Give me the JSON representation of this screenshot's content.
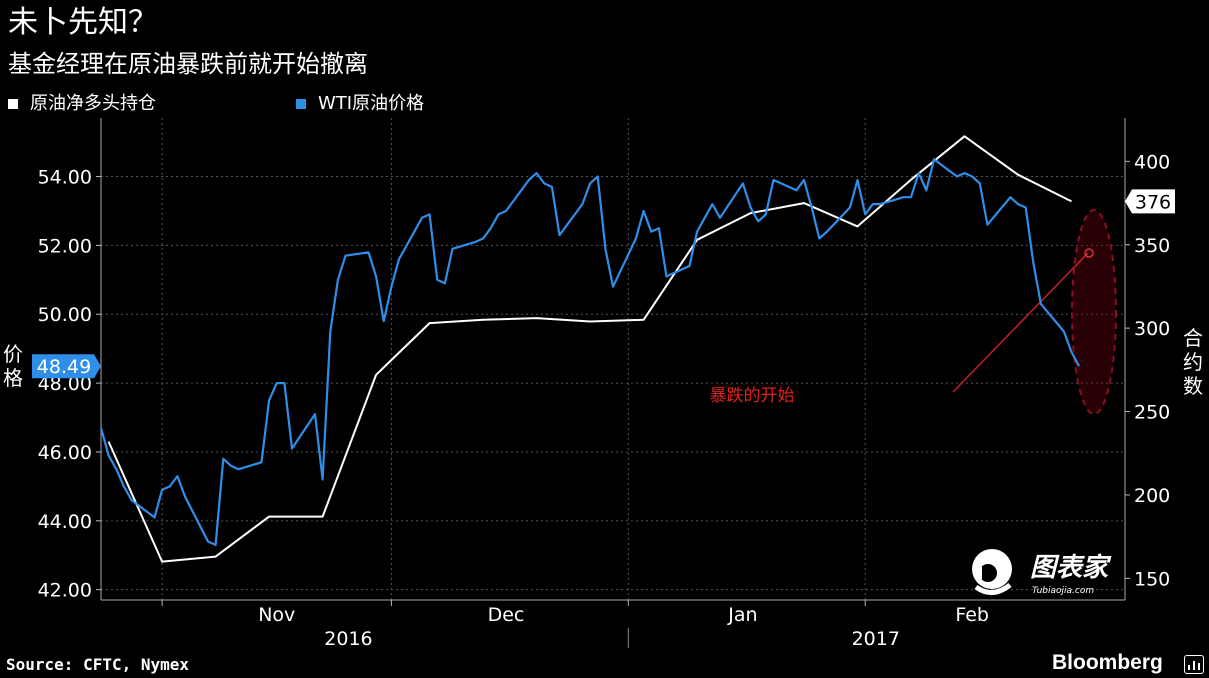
{
  "header": {
    "title": "未卜先知？",
    "subtitle": "基金经理在原油暴跌前就开始撤离"
  },
  "legend": [
    {
      "label": "原油净多头持仓",
      "color": "#ffffff"
    },
    {
      "label": "WTI原油价格",
      "color": "#2f8fe8"
    }
  ],
  "axes": {
    "left_label": "价格",
    "right_label": "合约数"
  },
  "footer": {
    "source": "Source: CFTC, Nymex",
    "brand": "Bloomberg"
  },
  "watermark": {
    "text": "图表家",
    "sub": "Tubiaojia.com"
  },
  "chart_data": {
    "type": "line",
    "x_months": [
      {
        "label": "Nov",
        "date": "2016-11-01"
      },
      {
        "label": "Dec",
        "date": "2016-12-01"
      },
      {
        "label": "Jan",
        "date": "2017-01-01"
      },
      {
        "label": "Feb",
        "date": "2017-02-01"
      }
    ],
    "x_years": [
      {
        "label": "2016",
        "date": "2016-11-01"
      },
      {
        "label": "2017",
        "date": "2017-02-01"
      }
    ],
    "x_range": [
      "2016-10-24",
      "2017-03-07"
    ],
    "y_left": {
      "range": [
        41.7,
        55.7
      ],
      "ticks": [
        42,
        44,
        46,
        48,
        50,
        52,
        54
      ]
    },
    "y_right": {
      "range": [
        137,
        426
      ],
      "ticks": [
        150,
        200,
        250,
        300,
        350,
        400
      ]
    },
    "grid": true,
    "current_value_left": "48.49",
    "current_value_right": "376",
    "annotation": "暴跌的开始",
    "series": [
      {
        "name": "原油净多头持仓",
        "axis": "right",
        "color": "#ffffff",
        "points": [
          [
            "2016-10-25",
            232
          ],
          [
            "2016-11-01",
            160
          ],
          [
            "2016-11-08",
            163
          ],
          [
            "2016-11-15",
            187
          ],
          [
            "2016-11-22",
            187
          ],
          [
            "2016-11-29",
            272
          ],
          [
            "2016-12-06",
            303
          ],
          [
            "2016-12-13",
            305
          ],
          [
            "2016-12-20",
            306
          ],
          [
            "2016-12-27",
            304
          ],
          [
            "2017-01-03",
            305
          ],
          [
            "2017-01-10",
            353
          ],
          [
            "2017-01-17",
            369
          ],
          [
            "2017-01-24",
            375
          ],
          [
            "2017-01-31",
            361
          ],
          [
            "2017-02-07",
            389
          ],
          [
            "2017-02-14",
            415
          ],
          [
            "2017-02-21",
            392
          ],
          [
            "2017-02-28",
            376
          ]
        ]
      },
      {
        "name": "WTI原油价格",
        "axis": "left",
        "color": "#2f8fe8",
        "points": [
          [
            "2016-10-24",
            46.7
          ],
          [
            "2016-10-25",
            45.9
          ],
          [
            "2016-10-26",
            45.5
          ],
          [
            "2016-10-27",
            45.0
          ],
          [
            "2016-10-28",
            44.6
          ],
          [
            "2016-10-31",
            44.1
          ],
          [
            "2016-11-01",
            44.9
          ],
          [
            "2016-11-02",
            45.0
          ],
          [
            "2016-11-03",
            45.3
          ],
          [
            "2016-11-04",
            44.7
          ],
          [
            "2016-11-07",
            43.4
          ],
          [
            "2016-11-08",
            43.3
          ],
          [
            "2016-11-09",
            45.8
          ],
          [
            "2016-11-10",
            45.6
          ],
          [
            "2016-11-11",
            45.5
          ],
          [
            "2016-11-14",
            45.7
          ],
          [
            "2016-11-15",
            47.5
          ],
          [
            "2016-11-16",
            48.0
          ],
          [
            "2016-11-17",
            48.0
          ],
          [
            "2016-11-18",
            46.1
          ],
          [
            "2016-11-21",
            47.1
          ],
          [
            "2016-11-22",
            45.2
          ],
          [
            "2016-11-23",
            49.5
          ],
          [
            "2016-11-24",
            51.0
          ],
          [
            "2016-11-25",
            51.7
          ],
          [
            "2016-11-28",
            51.8
          ],
          [
            "2016-11-29",
            51.1
          ],
          [
            "2016-11-30",
            49.8
          ],
          [
            "2016-12-01",
            50.8
          ],
          [
            "2016-12-02",
            51.6
          ],
          [
            "2016-12-05",
            52.8
          ],
          [
            "2016-12-06",
            52.9
          ],
          [
            "2016-12-07",
            51.0
          ],
          [
            "2016-12-08",
            50.9
          ],
          [
            "2016-12-09",
            51.9
          ],
          [
            "2016-12-12",
            52.1
          ],
          [
            "2016-12-13",
            52.2
          ],
          [
            "2016-12-14",
            52.5
          ],
          [
            "2016-12-15",
            52.9
          ],
          [
            "2016-12-16",
            53.0
          ],
          [
            "2016-12-19",
            53.9
          ],
          [
            "2016-12-20",
            54.1
          ],
          [
            "2016-12-21",
            53.8
          ],
          [
            "2016-12-22",
            53.7
          ],
          [
            "2016-12-23",
            52.3
          ],
          [
            "2016-12-26",
            53.2
          ],
          [
            "2016-12-27",
            53.8
          ],
          [
            "2016-12-28",
            54.0
          ],
          [
            "2016-12-29",
            51.9
          ],
          [
            "2016-12-30",
            50.8
          ],
          [
            "2017-01-02",
            52.2
          ],
          [
            "2017-01-03",
            53.0
          ],
          [
            "2017-01-04",
            52.4
          ],
          [
            "2017-01-05",
            52.5
          ],
          [
            "2017-01-06",
            51.1
          ],
          [
            "2017-01-09",
            51.4
          ],
          [
            "2017-01-10",
            52.4
          ],
          [
            "2017-01-11",
            52.8
          ],
          [
            "2017-01-12",
            53.2
          ],
          [
            "2017-01-13",
            52.8
          ],
          [
            "2017-01-16",
            53.8
          ],
          [
            "2017-01-17",
            53.1
          ],
          [
            "2017-01-18",
            52.7
          ],
          [
            "2017-01-19",
            52.9
          ],
          [
            "2017-01-20",
            53.9
          ],
          [
            "2017-01-23",
            53.6
          ],
          [
            "2017-01-24",
            53.9
          ],
          [
            "2017-01-25",
            53.1
          ],
          [
            "2017-01-26",
            52.2
          ],
          [
            "2017-01-27",
            52.4
          ],
          [
            "2017-01-30",
            53.1
          ],
          [
            "2017-01-31",
            53.9
          ],
          [
            "2017-02-01",
            52.9
          ],
          [
            "2017-02-02",
            53.2
          ],
          [
            "2017-02-03",
            53.2
          ],
          [
            "2017-02-06",
            53.4
          ],
          [
            "2017-02-07",
            53.4
          ],
          [
            "2017-02-08",
            54.1
          ],
          [
            "2017-02-09",
            53.6
          ],
          [
            "2017-02-10",
            54.5
          ],
          [
            "2017-02-13",
            54.0
          ],
          [
            "2017-02-14",
            54.1
          ],
          [
            "2017-02-15",
            54.0
          ],
          [
            "2017-02-16",
            53.8
          ],
          [
            "2017-02-17",
            52.6
          ],
          [
            "2017-02-20",
            53.4
          ],
          [
            "2017-02-21",
            53.2
          ],
          [
            "2017-02-22",
            53.1
          ],
          [
            "2017-02-23",
            51.5
          ],
          [
            "2017-02-24",
            50.3
          ],
          [
            "2017-02-27",
            49.5
          ],
          [
            "2017-02-28",
            48.9
          ],
          [
            "2017-03-01",
            48.49
          ]
        ]
      }
    ]
  }
}
